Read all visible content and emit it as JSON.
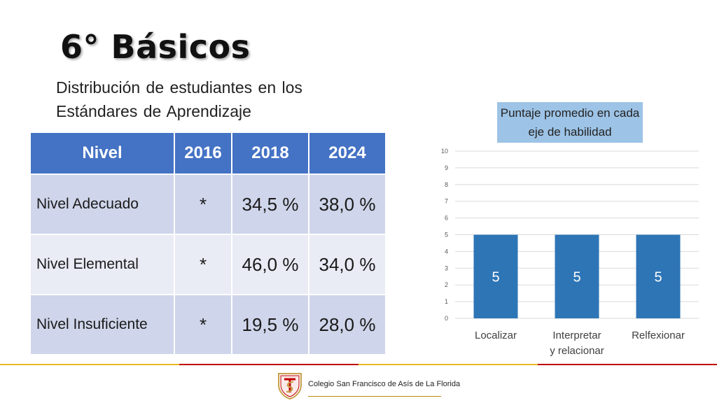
{
  "title": "6° Básicos",
  "subtitle": "Distribución de estudiantes en los Estándares de Aprendizaje",
  "table": {
    "headers": [
      "Nivel",
      "2016",
      "2018",
      "2024"
    ],
    "rows": [
      [
        "Nivel Adecuado",
        "*",
        "34,5 %",
        "38,0 %"
      ],
      [
        "Nivel Elemental",
        "*",
        "46,0 %",
        "34,0 %"
      ],
      [
        "Nivel Insuficiente",
        "*",
        "19,5 %",
        "28,0 %"
      ]
    ]
  },
  "chart_data": {
    "type": "bar",
    "title": "Puntaje promedio en cada eje de habilidad",
    "categories": [
      [
        "Localizar"
      ],
      [
        "Interpretar",
        "y relacionar"
      ],
      [
        "Relfexionar"
      ]
    ],
    "values": [
      5,
      5,
      5
    ],
    "data_labels": [
      "5",
      "5",
      "5"
    ],
    "ylim": [
      0,
      10
    ],
    "yticks": [
      "0",
      "1",
      "2",
      "3",
      "4",
      "5",
      "6",
      "7",
      "8",
      "9",
      "10"
    ],
    "grid": true,
    "bar_color": "#2e75b6"
  },
  "footer": {
    "school": "Colegio San Francisco de Asís de La Florida",
    "line_colors": [
      "#e8b923",
      "#c00000"
    ]
  }
}
